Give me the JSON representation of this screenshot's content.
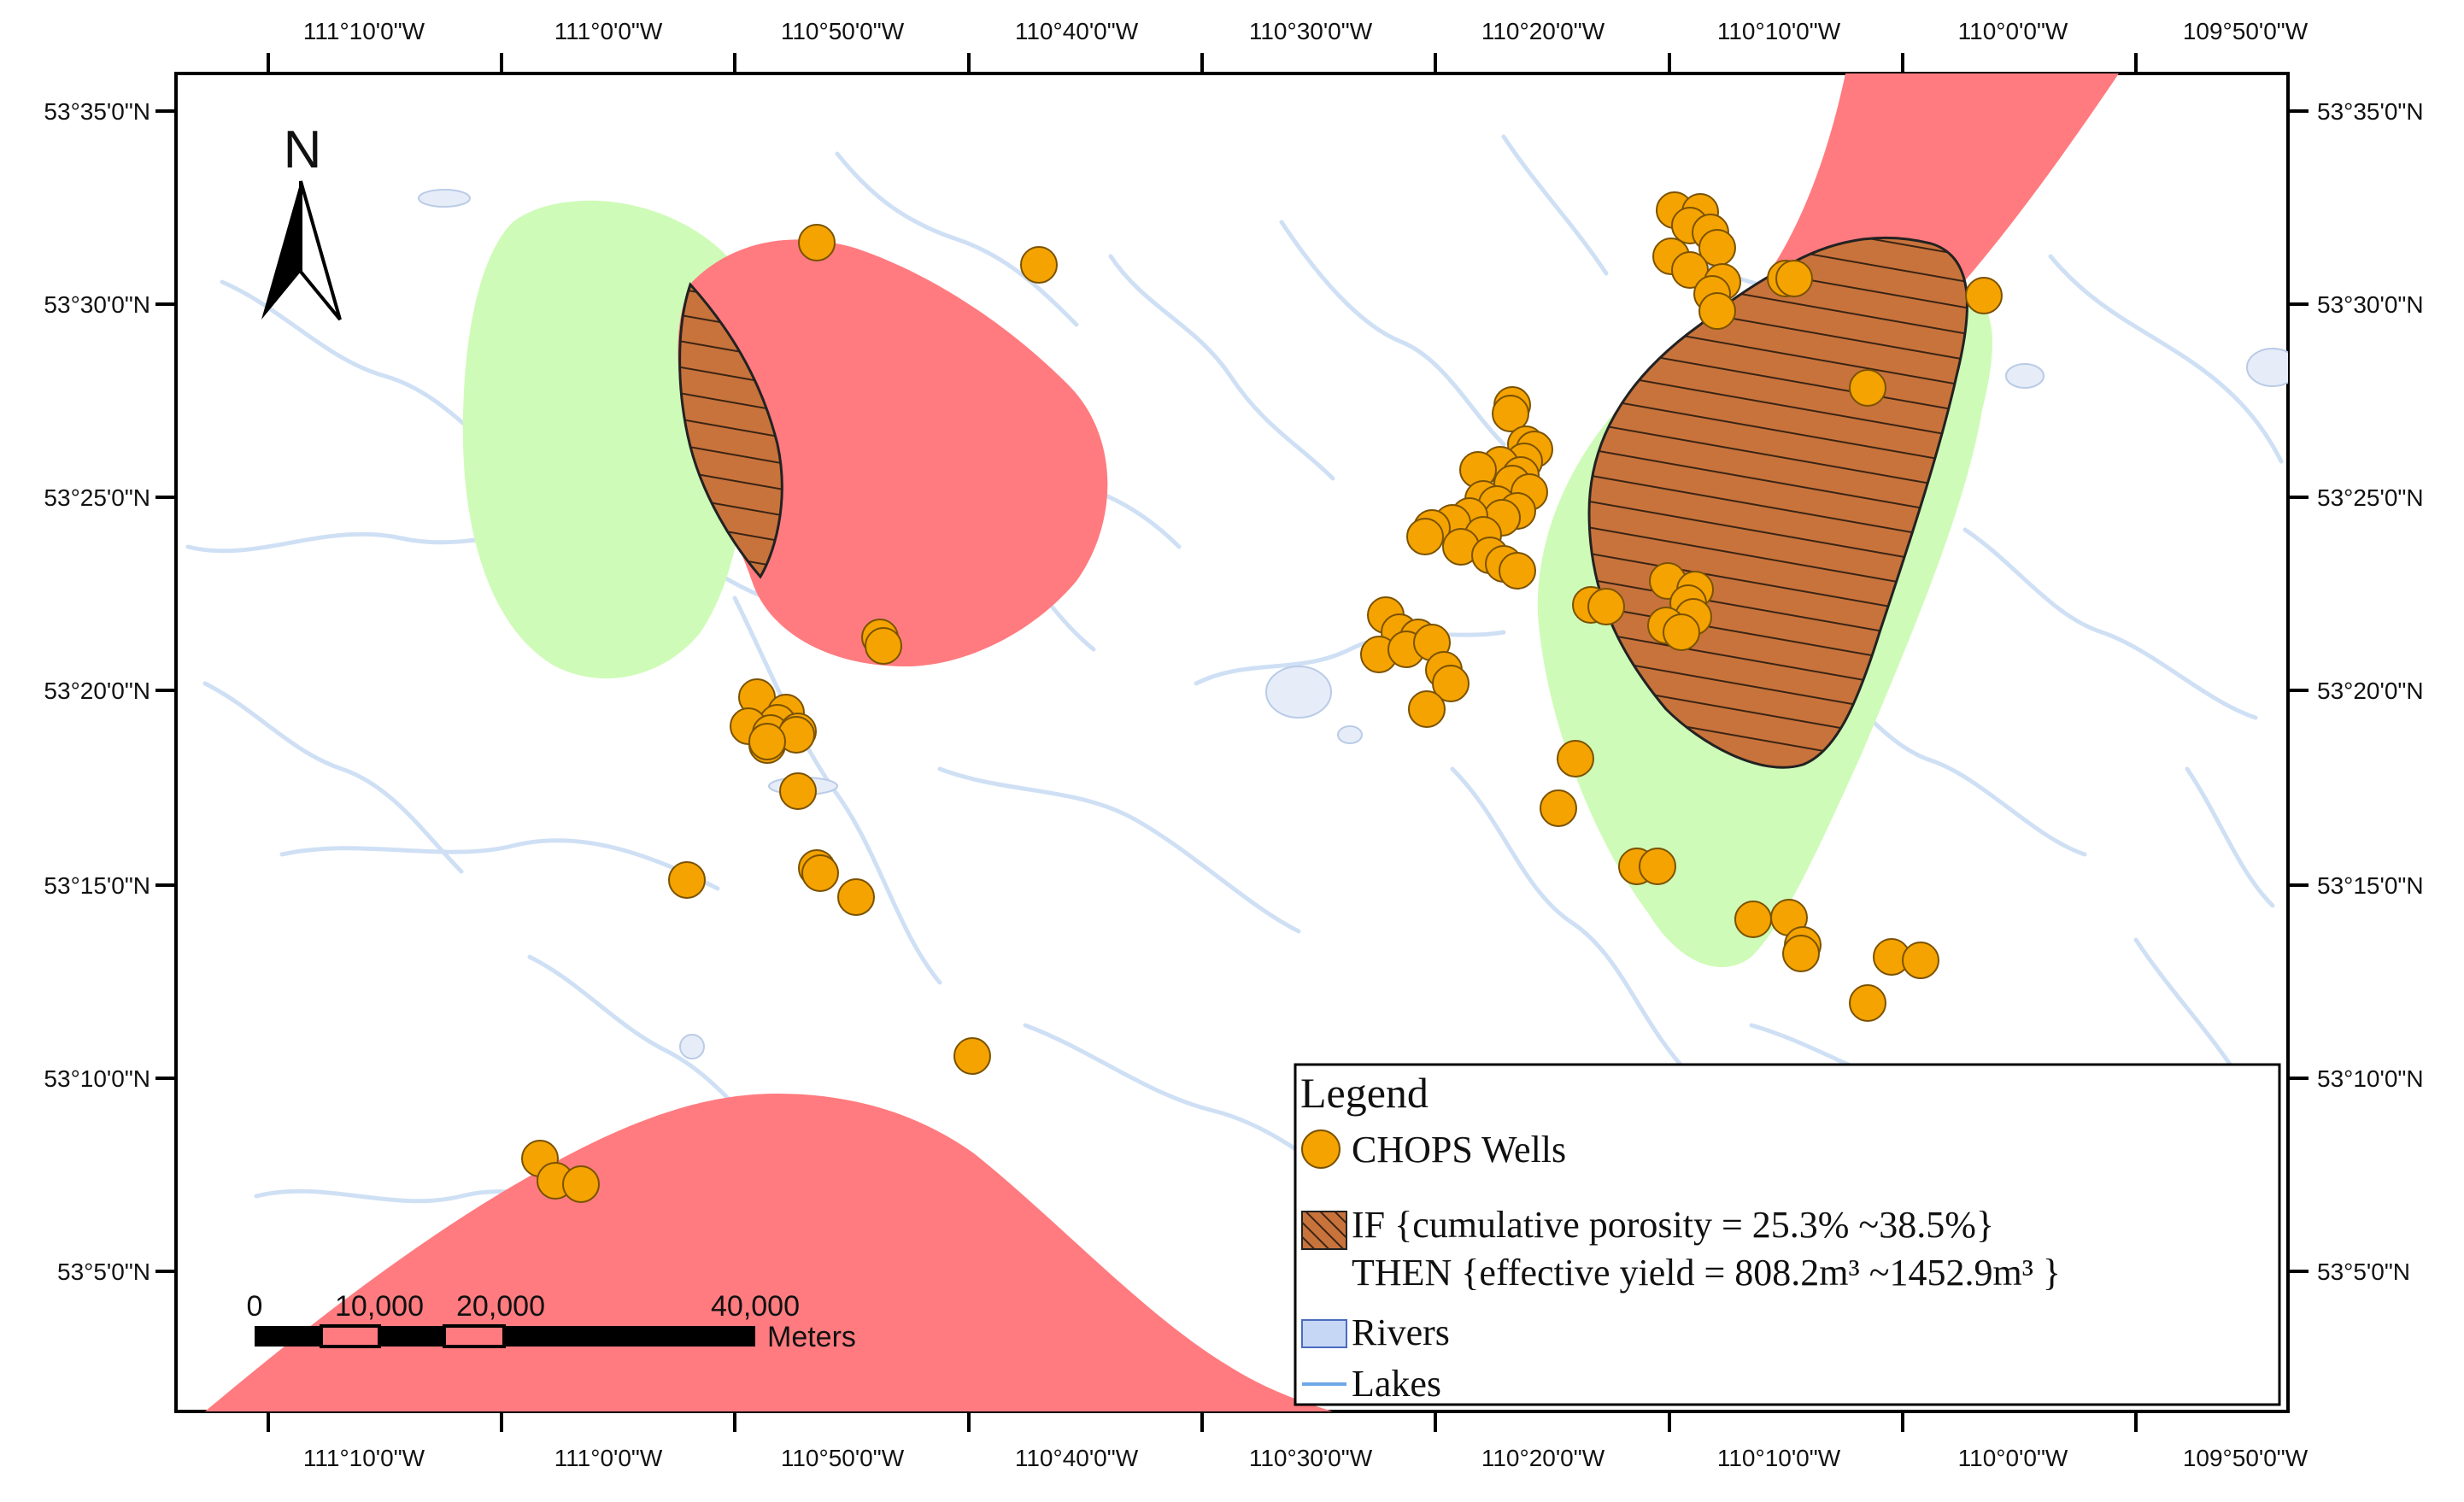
{
  "axes": {
    "top_lon": [
      "111°10'0\"W",
      "111°0'0\"W",
      "110°50'0\"W",
      "110°40'0\"W",
      "110°30'0\"W",
      "110°20'0\"W",
      "110°10'0\"W",
      "110°0'0\"W",
      "109°50'0\"W"
    ],
    "bottom_lon": [
      "111°10'0\"W",
      "111°0'0\"W",
      "110°50'0\"W",
      "110°40'0\"W",
      "110°30'0\"W",
      "110°20'0\"W",
      "110°10'0\"W",
      "110°0'0\"W",
      "109°50'0\"W"
    ],
    "left_lat": [
      "53°35'0\"N",
      "53°30'0\"N",
      "53°25'0\"N",
      "53°20'0\"N",
      "53°15'0\"N",
      "53°10'0\"N",
      "53°5'0\"N"
    ],
    "right_lat": [
      "53°35'0\"N",
      "53°30'0\"N",
      "53°25'0\"N",
      "53°20'0\"N",
      "53°15'0\"N",
      "53°10'0\"N",
      "53°5'0\"N"
    ]
  },
  "north_arrow": {
    "label": "N",
    "icon": "north-arrow-icon"
  },
  "scale_bar": {
    "labels": [
      "0",
      "10,000",
      "20,000",
      "40,000"
    ],
    "unit": "Meters"
  },
  "legend": {
    "title": "Legend",
    "wells_label": "CHOPS Wells",
    "rule_if": "IF {cumulative porosity = 25.3% ~38.5%}",
    "rule_then": "THEN {effective yield = 808.2m³ ~1452.9m³ }",
    "rivers_label": "Rivers",
    "lakes_label": "Lakes"
  },
  "colors": {
    "wells": "#f5a300",
    "red_zone": "#ff7b7f",
    "green_zone": "#cffbb8",
    "hatch_zone": "#c8733c",
    "rivers_fill": "#c6d6f5",
    "lakes": "#6fa8e8",
    "water_lines": "#cfe0f5"
  }
}
